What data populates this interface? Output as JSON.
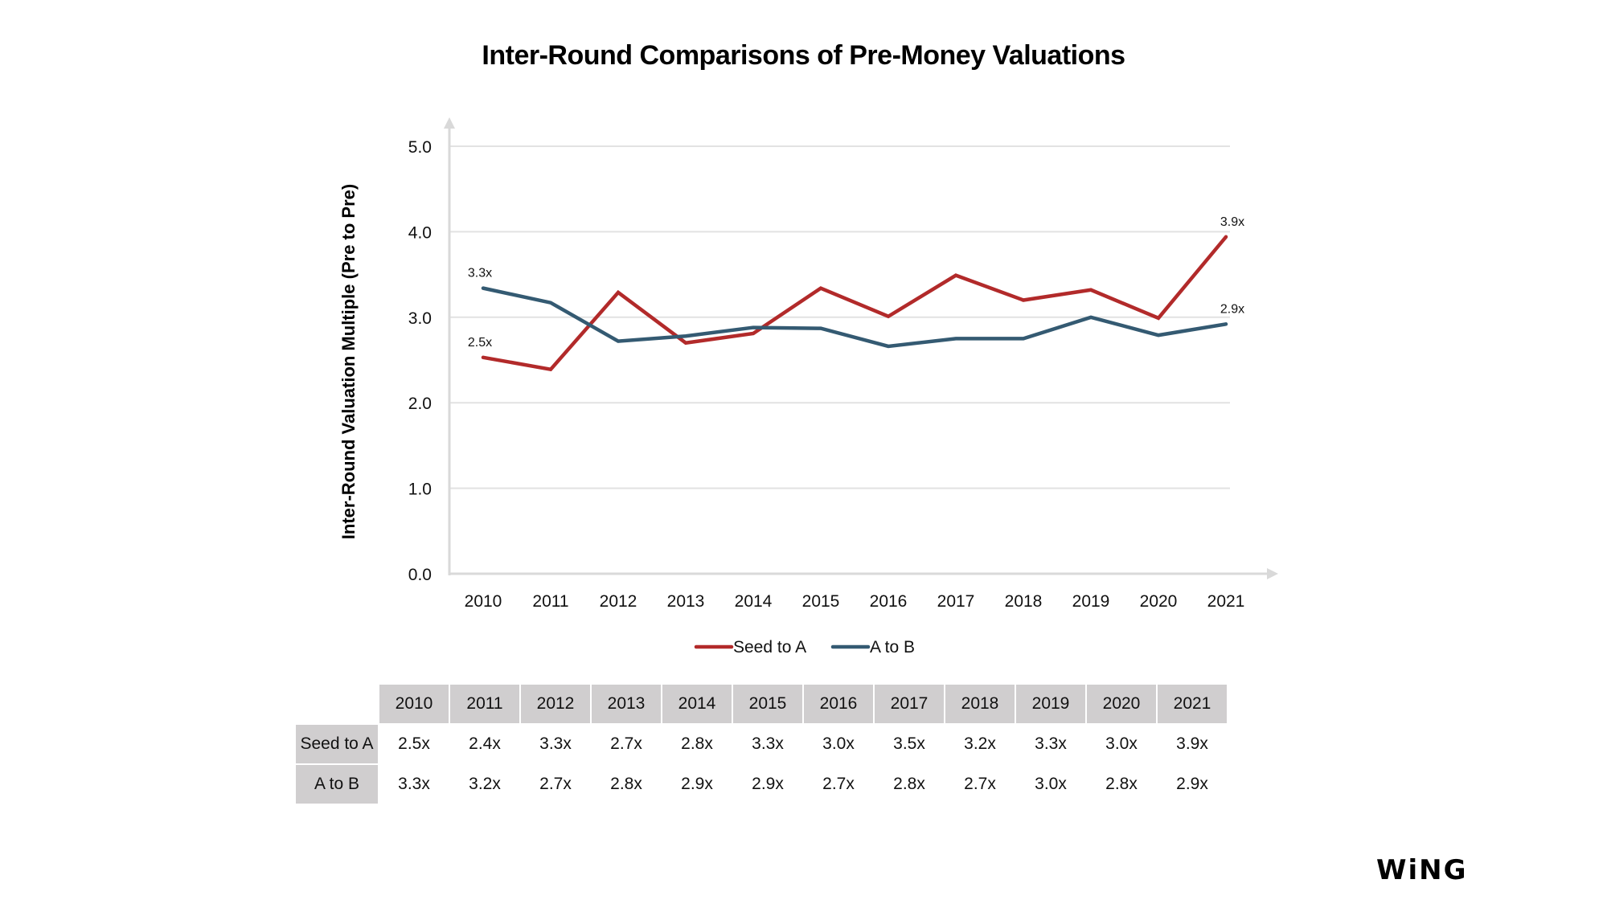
{
  "chart_data": {
    "type": "line",
    "title": "Inter-Round Comparisons of Pre-Money Valuations",
    "xlabel": "",
    "ylabel": "Inter-Round Valuation Multiple (Pre to Pre)",
    "ylim": [
      0,
      5
    ],
    "yticks": [
      "0.0",
      "1.0",
      "2.0",
      "3.0",
      "4.0",
      "5.0"
    ],
    "grid": true,
    "legend": "bottom-center",
    "categories": [
      "2010",
      "2011",
      "2012",
      "2013",
      "2014",
      "2015",
      "2016",
      "2017",
      "2018",
      "2019",
      "2020",
      "2021"
    ],
    "series": [
      {
        "name": "Seed to A",
        "color": "#b22a2a",
        "values": [
          2.53,
          2.39,
          3.29,
          2.7,
          2.81,
          3.34,
          3.01,
          3.49,
          3.2,
          3.32,
          2.99,
          3.94
        ],
        "labels": [
          "2.5x",
          "2.4x",
          "3.3x",
          "2.7x",
          "2.8x",
          "3.3x",
          "3.0x",
          "3.5x",
          "3.2x",
          "3.3x",
          "3.0x",
          "3.9x"
        ],
        "annotated": {
          "first": "2.5x",
          "last": "3.9x"
        }
      },
      {
        "name": "A to B",
        "color": "#345a72",
        "values": [
          3.34,
          3.17,
          2.72,
          2.78,
          2.88,
          2.87,
          2.66,
          2.75,
          2.75,
          3.0,
          2.79,
          2.92
        ],
        "labels": [
          "3.3x",
          "3.2x",
          "2.7x",
          "2.8x",
          "2.9x",
          "2.9x",
          "2.7x",
          "2.8x",
          "2.7x",
          "3.0x",
          "2.8x",
          "2.9x"
        ],
        "annotated": {
          "first": "3.3x",
          "last": "2.9x"
        }
      }
    ]
  },
  "table": {
    "headers": [
      "2010",
      "2011",
      "2012",
      "2013",
      "2014",
      "2015",
      "2016",
      "2017",
      "2018",
      "2019",
      "2020",
      "2021"
    ],
    "rows": [
      {
        "label": "Seed to A",
        "cells": [
          "2.5x",
          "2.4x",
          "3.3x",
          "2.7x",
          "2.8x",
          "3.3x",
          "3.0x",
          "3.5x",
          "3.2x",
          "3.3x",
          "3.0x",
          "3.9x"
        ]
      },
      {
        "label": "A to B",
        "cells": [
          "3.3x",
          "3.2x",
          "2.7x",
          "2.8x",
          "2.9x",
          "2.9x",
          "2.7x",
          "2.8x",
          "2.7x",
          "3.0x",
          "2.8x",
          "2.9x"
        ]
      }
    ]
  },
  "colors": {
    "grid": "#e2e2e2",
    "axis": "#d9d9d9",
    "table_header": "#d0cecf"
  },
  "logo": "WiNG"
}
